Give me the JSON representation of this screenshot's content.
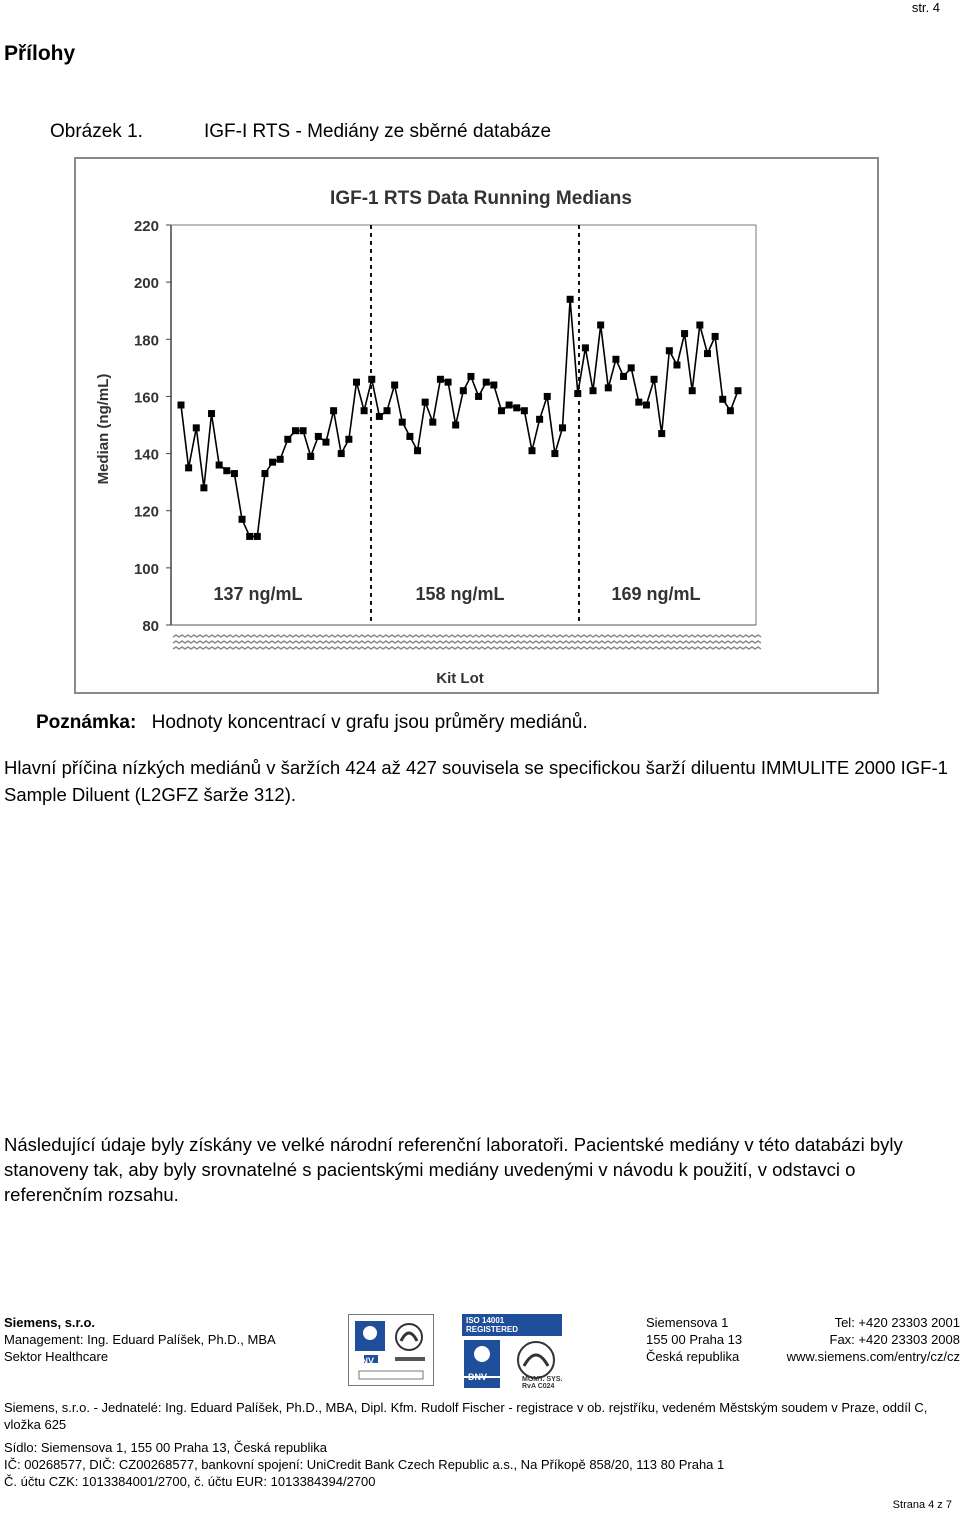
{
  "page_header": {
    "number": "str. 4"
  },
  "section_title": "Přílohy",
  "figure": {
    "label": "Obrázek 1.",
    "title": "IGF-I RTS - Mediány ze sběrné databáze"
  },
  "chart_data": {
    "type": "line",
    "title": "IGF-1 RTS Data Running Medians",
    "xlabel": "Kit Lot",
    "ylabel": "Median (ng/mL)",
    "ylim": [
      80,
      220
    ],
    "yticks": [
      "220",
      "200",
      "180",
      "160",
      "140",
      "120",
      "100",
      "80"
    ],
    "grid": false,
    "legend": "none",
    "period_labels": [
      "137 ng/mL",
      "158 ng/mL",
      "169 ng/mL"
    ],
    "series": [
      {
        "values": [
          157,
          135,
          149,
          128,
          154,
          136,
          134,
          133,
          117,
          111,
          111,
          133,
          137,
          138,
          145,
          148,
          148,
          139,
          146,
          144,
          155,
          140,
          145,
          165,
          155,
          166,
          153,
          155,
          164,
          151,
          146,
          141,
          158,
          151,
          166,
          165,
          150,
          162,
          167,
          160,
          165,
          164,
          155,
          157,
          156,
          155,
          141,
          152,
          160,
          140,
          149,
          194,
          161,
          177,
          162,
          185,
          163,
          173,
          167,
          170,
          158,
          157,
          166,
          147,
          176,
          171,
          182,
          162,
          185,
          175,
          181,
          159,
          155,
          162
        ]
      }
    ],
    "marker_color": "#000000",
    "line_color": "#000000",
    "divider_style": "dashed"
  },
  "note": {
    "label": "Poznámka:",
    "text": "Hodnoty koncentrací v grafu jsou průměry mediánů."
  },
  "paragraph1": "Hlavní příčina nízkých mediánů v šaržích 424 až 427 souvisela se specifickou šarží diluentu IMMULITE 2000 IGF-1 Sample Diluent (L2GFZ šarže 312).",
  "paragraph2": "Následující údaje byly získány ve velké národní referenční laboratoři. Pacientské mediány v této databázi byly stanoveny tak, aby byly srovnatelné s pacientskými mediány uvedenými v návodu k použití, v odstavci o referenčním rozsahu.",
  "footer": {
    "company": "Siemens, s.r.o.",
    "management": "Management: Ing. Eduard Palíšek, Ph.D., MBA",
    "sector": "Sektor Healthcare",
    "iso_label": "ISO 14001 REGISTERED",
    "logo_dnv": "DNV",
    "logo_mgmt": "MGMT. SYS. RvA C024",
    "address1": "Siemensova 1",
    "address2": "155 00  Praha 13",
    "address3": "Česká republika",
    "tel": "Tel:  +420 23303 2001",
    "fax": "Fax: +420 23303 2008",
    "web": "www.siemens.com/entry/cz/cz",
    "legal": "Siemens, s.r.o. - Jednatelé: Ing. Eduard Palíšek, Ph.D., MBA, Dipl. Kfm. Rudolf Fischer - registrace v ob. rejstříku, vedeném Městským soudem v Praze, oddíl C, vložka 625",
    "seat": "Sídlo: Siemensova 1, 155 00  Praha 13, Česká republika",
    "ids": "IČ: 00268577, DIČ: CZ00268577, bankovní spojení: UniCredit Bank Czech Republic a.s., Na Příkopě 858/20, 113 80 Praha 1",
    "accounts": "Č. účtu CZK: 1013384001/2700, č. účtu EUR: 1013384394/2700",
    "page": "Strana 4 z 7"
  }
}
